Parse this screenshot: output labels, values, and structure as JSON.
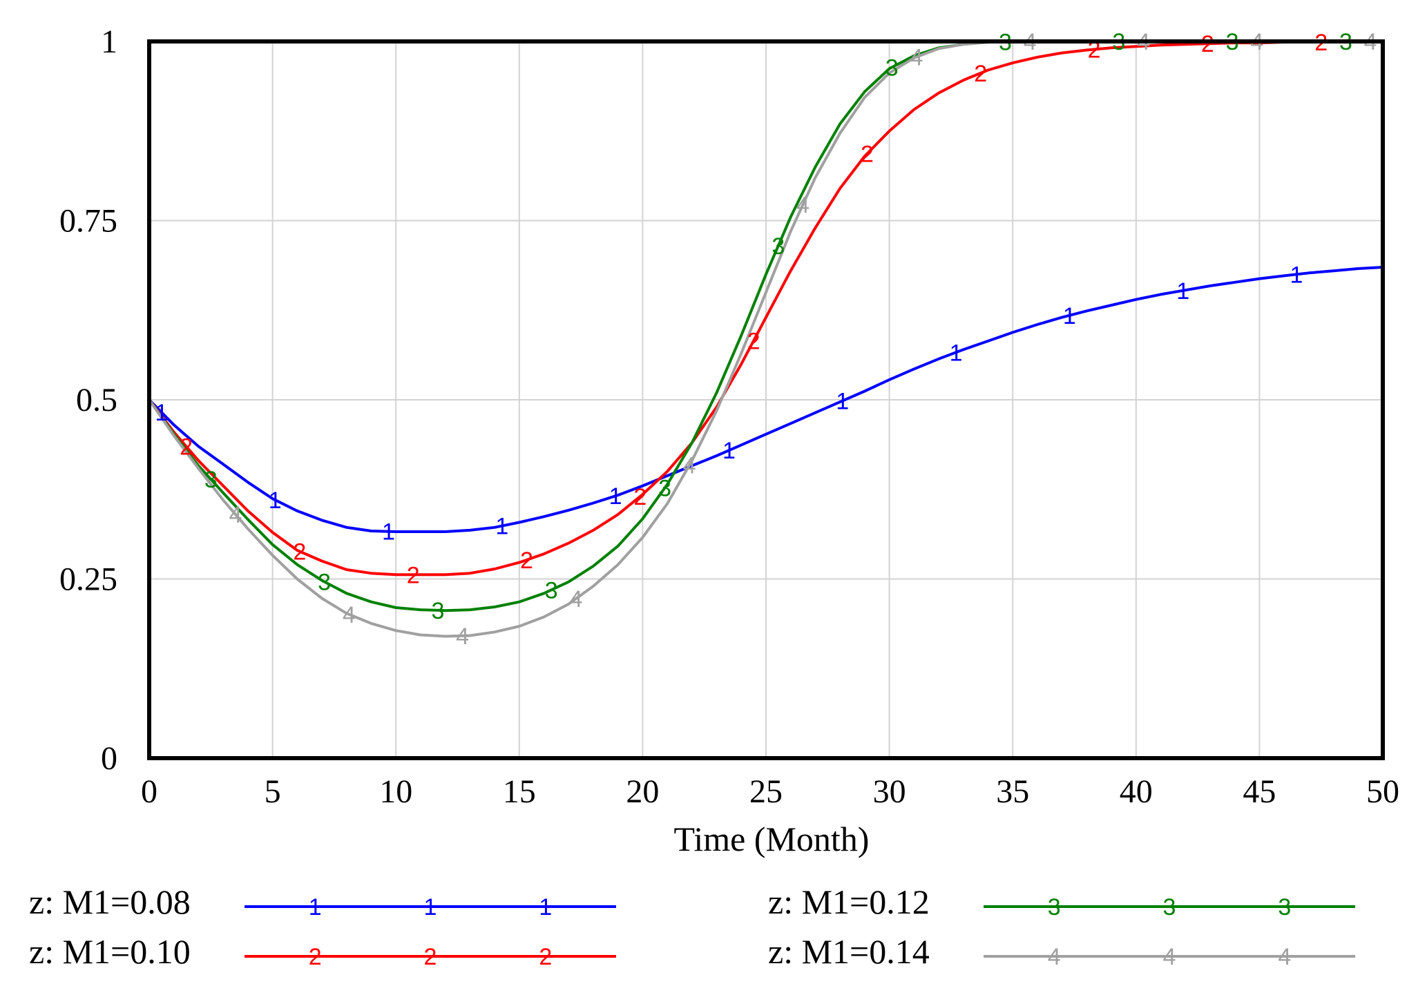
{
  "chart_data": {
    "type": "line",
    "title": "",
    "xlabel": "Time (Month)",
    "ylabel": "",
    "xlim": [
      0,
      50
    ],
    "ylim": [
      0,
      1
    ],
    "x_ticks": [
      "0",
      "5",
      "10",
      "15",
      "20",
      "25",
      "30",
      "35",
      "40",
      "45",
      "50"
    ],
    "y_ticks": [
      "0",
      "0.25",
      "0.5",
      "0.75",
      "1"
    ],
    "grid": true,
    "legend_position": "bottom",
    "x": [
      0,
      1,
      2,
      3,
      4,
      5,
      6,
      7,
      8,
      9,
      10,
      11,
      12,
      13,
      14,
      15,
      16,
      17,
      18,
      19,
      20,
      21,
      22,
      23,
      24,
      25,
      26,
      27,
      28,
      29,
      30,
      31,
      32,
      33,
      34,
      35,
      36,
      37,
      38,
      39,
      40,
      41,
      42,
      43,
      44,
      45,
      46,
      47,
      48,
      49,
      50
    ],
    "series": [
      {
        "name": "z: M1=0.08",
        "marker": "1",
        "color": "#0000ff",
        "values": [
          0.5,
          0.465,
          0.435,
          0.41,
          0.385,
          0.362,
          0.345,
          0.332,
          0.322,
          0.317,
          0.316,
          0.316,
          0.316,
          0.318,
          0.322,
          0.329,
          0.337,
          0.346,
          0.356,
          0.367,
          0.38,
          0.394,
          0.408,
          0.422,
          0.437,
          0.452,
          0.467,
          0.482,
          0.497,
          0.512,
          0.528,
          0.543,
          0.557,
          0.57,
          0.582,
          0.594,
          0.605,
          0.615,
          0.624,
          0.632,
          0.64,
          0.647,
          0.653,
          0.659,
          0.664,
          0.669,
          0.673,
          0.677,
          0.68,
          0.683,
          0.685
        ]
      },
      {
        "name": "z: M1=0.10",
        "marker": "2",
        "color": "#ff0000",
        "values": [
          0.5,
          0.455,
          0.415,
          0.38,
          0.345,
          0.315,
          0.29,
          0.275,
          0.263,
          0.258,
          0.256,
          0.256,
          0.256,
          0.258,
          0.264,
          0.273,
          0.285,
          0.3,
          0.318,
          0.34,
          0.368,
          0.4,
          0.44,
          0.49,
          0.55,
          0.615,
          0.68,
          0.74,
          0.795,
          0.84,
          0.875,
          0.905,
          0.928,
          0.946,
          0.96,
          0.97,
          0.978,
          0.984,
          0.988,
          0.991,
          0.993,
          0.995,
          0.996,
          0.997,
          0.998,
          0.998,
          0.999,
          0.999,
          0.999,
          1.0,
          1.0
        ]
      },
      {
        "name": "z: M1=0.12",
        "marker": "3",
        "color": "#008000",
        "values": [
          0.5,
          0.452,
          0.408,
          0.37,
          0.333,
          0.298,
          0.27,
          0.248,
          0.23,
          0.218,
          0.21,
          0.207,
          0.206,
          0.207,
          0.211,
          0.218,
          0.23,
          0.246,
          0.268,
          0.296,
          0.334,
          0.382,
          0.44,
          0.51,
          0.59,
          0.675,
          0.755,
          0.825,
          0.885,
          0.93,
          0.962,
          0.98,
          0.991,
          0.996,
          0.999,
          1.0,
          1.0,
          1.0,
          1.0,
          1.0,
          1.0,
          1.0,
          1.0,
          1.0,
          1.0,
          1.0,
          1.0,
          1.0,
          1.0,
          1.0,
          1.0
        ]
      },
      {
        "name": "z: M1=0.14",
        "marker": "4",
        "color": "#a0a0a0",
        "values": [
          0.5,
          0.45,
          0.404,
          0.36,
          0.32,
          0.283,
          0.25,
          0.223,
          0.202,
          0.188,
          0.178,
          0.172,
          0.17,
          0.171,
          0.176,
          0.184,
          0.197,
          0.215,
          0.24,
          0.27,
          0.308,
          0.355,
          0.415,
          0.485,
          0.565,
          0.65,
          0.735,
          0.81,
          0.872,
          0.922,
          0.956,
          0.977,
          0.99,
          0.996,
          0.999,
          1.0,
          1.0,
          1.0,
          1.0,
          1.0,
          1.0,
          1.0,
          1.0,
          1.0,
          1.0,
          1.0,
          1.0,
          1.0,
          1.0,
          1.0,
          1.0
        ]
      }
    ]
  }
}
